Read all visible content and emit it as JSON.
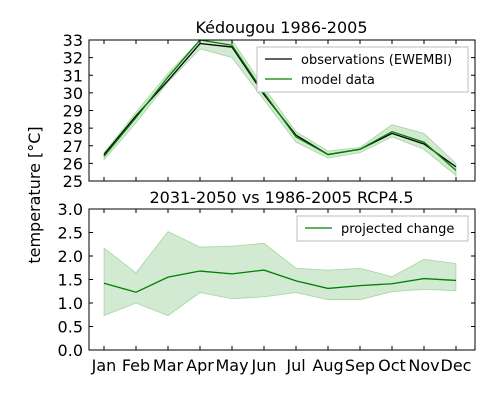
{
  "chart_data": [
    {
      "type": "line",
      "title": "Kédougou 1986-2005",
      "categories": [
        "Jan",
        "Feb",
        "Mar",
        "Apr",
        "May",
        "Jun",
        "Jul",
        "Aug",
        "Sep",
        "Oct",
        "Nov",
        "Dec"
      ],
      "ylim": [
        25,
        33
      ],
      "yticks": [
        25,
        26,
        27,
        28,
        29,
        30,
        31,
        32,
        33
      ],
      "legend": {
        "placement": "top-right"
      },
      "series": [
        {
          "name": "observations (EWEMBI)",
          "color": "#000000",
          "values": [
            26.5,
            28.7,
            30.7,
            32.8,
            32.6,
            29.9,
            27.6,
            26.5,
            26.8,
            27.7,
            27.1,
            25.8
          ]
        },
        {
          "name": "model data",
          "color": "#008000",
          "values": [
            26.4,
            28.6,
            30.9,
            33.0,
            32.7,
            30.0,
            27.5,
            26.5,
            26.8,
            27.8,
            27.2,
            25.6
          ],
          "band_low": [
            26.2,
            28.3,
            30.6,
            32.5,
            32.0,
            29.6,
            27.2,
            26.3,
            26.6,
            27.5,
            26.8,
            25.3
          ],
          "band_high": [
            26.6,
            28.9,
            31.1,
            33.0,
            33.0,
            30.3,
            27.8,
            26.7,
            26.9,
            28.2,
            27.7,
            26.0
          ]
        }
      ]
    },
    {
      "type": "line",
      "title": "2031-2050 vs 1986-2005 RCP4.5",
      "categories": [
        "Jan",
        "Feb",
        "Mar",
        "Apr",
        "May",
        "Jun",
        "Jul",
        "Aug",
        "Sep",
        "Oct",
        "Nov",
        "Dec"
      ],
      "ylim": [
        0.0,
        3.0
      ],
      "yticks": [
        "0.0",
        "0.5",
        "1.0",
        "1.5",
        "2.0",
        "2.5",
        "3.0"
      ],
      "legend": {
        "placement": "top-right"
      },
      "series": [
        {
          "name": "projected change",
          "color": "#008000",
          "values": [
            1.42,
            1.23,
            1.55,
            1.68,
            1.62,
            1.7,
            1.47,
            1.31,
            1.37,
            1.41,
            1.52,
            1.48
          ],
          "band_low": [
            0.73,
            1.0,
            0.73,
            1.22,
            1.09,
            1.13,
            1.22,
            1.07,
            1.07,
            1.24,
            1.29,
            1.26
          ],
          "band_high": [
            2.17,
            1.64,
            2.52,
            2.19,
            2.21,
            2.27,
            1.74,
            1.7,
            1.74,
            1.56,
            1.93,
            1.84
          ]
        }
      ]
    }
  ],
  "shared_ylabel": "temperature [°C]"
}
